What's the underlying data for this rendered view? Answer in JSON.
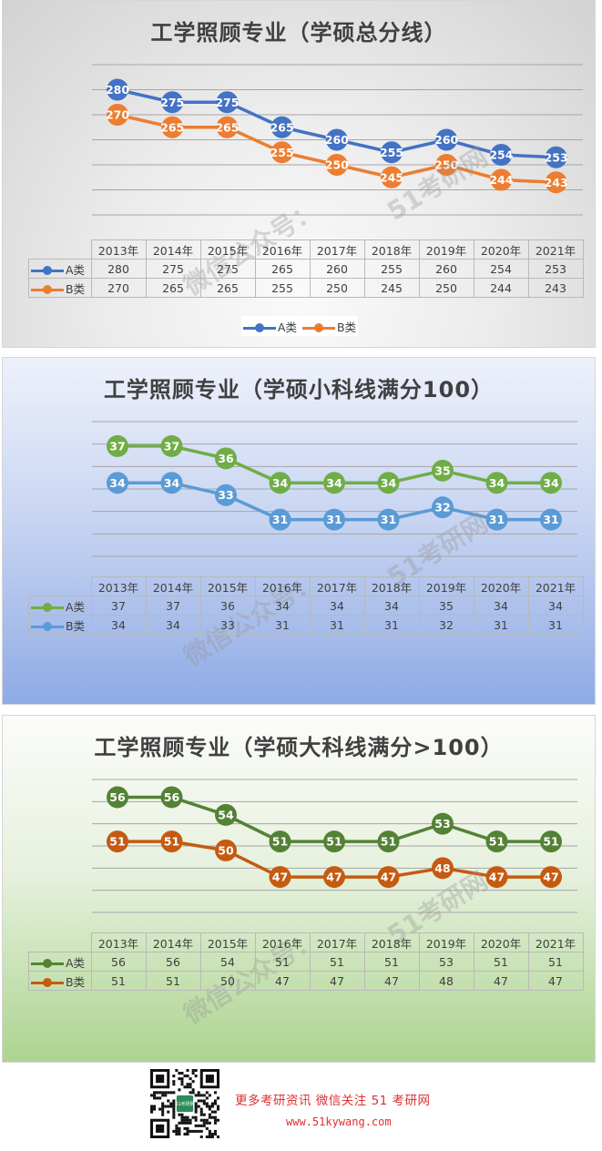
{
  "years": [
    "2013年",
    "2014年",
    "2015年",
    "2016年",
    "2017年",
    "2018年",
    "2019年",
    "2020年",
    "2021年"
  ],
  "series_labels": {
    "a": "A类",
    "b": "B类"
  },
  "watermark": {
    "line1": "51考研网",
    "line2": "微信公众号："
  },
  "colors": {
    "panel1_a": "#4472c4",
    "panel1_b": "#ed7d31",
    "panel2_a": "#70ad47",
    "panel2_b": "#5b9bd5",
    "panel3_a": "#548235",
    "panel3_b": "#c55a11",
    "footer_text": "#e03030"
  },
  "chart_data": [
    {
      "type": "line",
      "title": "工学照顾专业（学硕总分线）",
      "categories": [
        "2013年",
        "2014年",
        "2015年",
        "2016年",
        "2017年",
        "2018年",
        "2019年",
        "2020年",
        "2021年"
      ],
      "series": [
        {
          "name": "A类",
          "values": [
            280,
            275,
            275,
            265,
            260,
            255,
            260,
            254,
            253
          ]
        },
        {
          "name": "B类",
          "values": [
            270,
            265,
            265,
            255,
            250,
            245,
            250,
            244,
            243
          ]
        }
      ],
      "ylim": [
        230,
        290
      ],
      "grid": true,
      "legend": "bottom",
      "data_table": true
    },
    {
      "type": "line",
      "title": "工学照顾专业（学硕小科线满分100）",
      "categories": [
        "2013年",
        "2014年",
        "2015年",
        "2016年",
        "2017年",
        "2018年",
        "2019年",
        "2020年",
        "2021年"
      ],
      "series": [
        {
          "name": "A类",
          "values": [
            37,
            37,
            36,
            34,
            34,
            34,
            35,
            34,
            34
          ]
        },
        {
          "name": "B类",
          "values": [
            34,
            34,
            33,
            31,
            31,
            31,
            32,
            31,
            31
          ]
        }
      ],
      "ylim": [
        28,
        39
      ],
      "grid": true,
      "data_table": true
    },
    {
      "type": "line",
      "title": "工学照顾专业（学硕大科线满分>100）",
      "categories": [
        "2013年",
        "2014年",
        "2015年",
        "2016年",
        "2017年",
        "2018年",
        "2019年",
        "2020年",
        "2021年"
      ],
      "series": [
        {
          "name": "A类",
          "values": [
            56,
            56,
            54,
            51,
            51,
            51,
            53,
            51,
            51
          ]
        },
        {
          "name": "B类",
          "values": [
            51,
            51,
            50,
            47,
            47,
            47,
            48,
            47,
            47
          ]
        }
      ],
      "ylim": [
        43,
        58
      ],
      "grid": true,
      "data_table": true
    }
  ],
  "footer": {
    "line1": "更多考研资讯 微信关注 51 考研网",
    "line2": "www.51kywang.com",
    "qr_label": "51考研网"
  }
}
